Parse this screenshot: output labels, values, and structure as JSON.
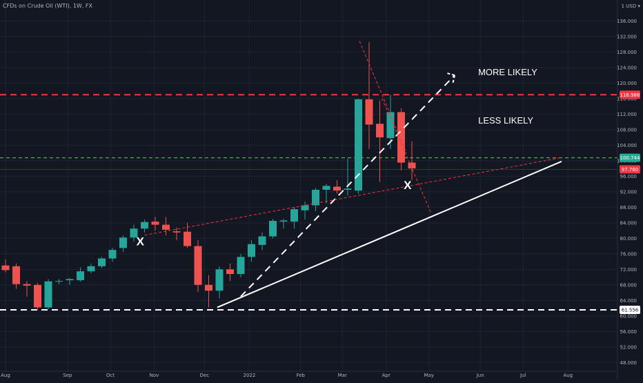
{
  "header": {
    "symbol": "CFDs on Crude Oil (WTI), 1W, FX"
  },
  "chart_data": {
    "type": "candlestick",
    "currency_label": "1 USD ▾",
    "y_ticks": [
      48,
      52,
      56,
      60,
      64,
      68,
      72,
      76,
      80,
      84,
      88,
      92,
      96,
      100,
      104,
      108,
      112,
      116,
      120,
      124,
      128,
      132,
      136
    ],
    "y_tick_labels": [
      "48.000",
      "52.000",
      "56.000",
      "60.000",
      "64.000",
      "68.000",
      "72.000",
      "76.000",
      "80.000",
      "84.000",
      "88.000",
      "92.000",
      "96.000",
      "100.000",
      "104.000",
      "108.000",
      "112.000",
      "116.000",
      "120.000",
      "124.000",
      "128.000",
      "132.000",
      "136.000"
    ],
    "ylim": [
      44.5,
      140.5
    ],
    "x_labels": [
      {
        "text": "Aug",
        "week": 0
      },
      {
        "text": "Sep",
        "week": 5.8
      },
      {
        "text": "Oct",
        "week": 9.8
      },
      {
        "text": "Nov",
        "week": 13.9
      },
      {
        "text": "Dec",
        "week": 18.6
      },
      {
        "text": "2022",
        "week": 22.8
      },
      {
        "text": "Feb",
        "week": 27.6
      },
      {
        "text": "Mar",
        "week": 31.5
      },
      {
        "text": "Apr",
        "week": 35.6
      },
      {
        "text": "May",
        "week": 39.6
      },
      {
        "text": "Jun",
        "week": 44.4
      },
      {
        "text": "Jul",
        "week": 48.4
      },
      {
        "text": "Aug",
        "week": 52.6
      }
    ],
    "candles": [
      {
        "o": 73.0,
        "h": 74.5,
        "l": 71.2,
        "c": 71.8
      },
      {
        "o": 72.8,
        "h": 73.5,
        "l": 67.0,
        "c": 68.2
      },
      {
        "o": 68.2,
        "h": 69.0,
        "l": 65.0,
        "c": 67.8
      },
      {
        "o": 68.0,
        "h": 68.5,
        "l": 61.7,
        "c": 62.2
      },
      {
        "o": 62.2,
        "h": 69.5,
        "l": 61.7,
        "c": 68.9
      },
      {
        "o": 68.9,
        "h": 69.5,
        "l": 68.2,
        "c": 69.0
      },
      {
        "o": 69.2,
        "h": 69.8,
        "l": 68.0,
        "c": 69.5
      },
      {
        "o": 69.2,
        "h": 72.5,
        "l": 68.8,
        "c": 71.5
      },
      {
        "o": 71.5,
        "h": 73.5,
        "l": 71.0,
        "c": 72.8
      },
      {
        "o": 72.8,
        "h": 75.2,
        "l": 72.3,
        "c": 74.8
      },
      {
        "o": 74.8,
        "h": 77.5,
        "l": 74.0,
        "c": 77.0
      },
      {
        "o": 77.5,
        "h": 80.8,
        "l": 76.5,
        "c": 80.2
      },
      {
        "o": 80.2,
        "h": 83.5,
        "l": 79.2,
        "c": 82.5
      },
      {
        "o": 82.5,
        "h": 84.8,
        "l": 81.5,
        "c": 84.2
      },
      {
        "o": 84.3,
        "h": 85.5,
        "l": 82.0,
        "c": 83.5
      },
      {
        "o": 83.5,
        "h": 85.5,
        "l": 80.8,
        "c": 82.2
      },
      {
        "o": 81.8,
        "h": 82.8,
        "l": 79.5,
        "c": 81.5
      },
      {
        "o": 81.7,
        "h": 84.0,
        "l": 77.5,
        "c": 78.0
      },
      {
        "o": 78.0,
        "h": 79.5,
        "l": 66.2,
        "c": 68.0
      },
      {
        "o": 68.0,
        "h": 70.5,
        "l": 62.2,
        "c": 66.5
      },
      {
        "o": 66.5,
        "h": 72.8,
        "l": 64.5,
        "c": 72.0
      },
      {
        "o": 72.0,
        "h": 73.5,
        "l": 69.0,
        "c": 70.8
      },
      {
        "o": 70.8,
        "h": 76.0,
        "l": 70.0,
        "c": 75.2
      },
      {
        "o": 75.2,
        "h": 79.5,
        "l": 74.0,
        "c": 78.5
      },
      {
        "o": 78.3,
        "h": 81.5,
        "l": 77.0,
        "c": 80.5
      },
      {
        "o": 80.5,
        "h": 85.0,
        "l": 80.0,
        "c": 84.5
      },
      {
        "o": 84.3,
        "h": 85.0,
        "l": 82.5,
        "c": 84.6
      },
      {
        "o": 84.3,
        "h": 88.0,
        "l": 82.5,
        "c": 87.5
      },
      {
        "o": 87.2,
        "h": 89.5,
        "l": 84.8,
        "c": 88.5
      },
      {
        "o": 88.5,
        "h": 93.0,
        "l": 87.0,
        "c": 92.5
      },
      {
        "o": 92.5,
        "h": 94.0,
        "l": 89.0,
        "c": 93.5
      },
      {
        "o": 93.3,
        "h": 95.0,
        "l": 91.5,
        "c": 92.3
      },
      {
        "o": 92.5,
        "h": 100.5,
        "l": 91.0,
        "c": 92.8
      },
      {
        "o": 92.3,
        "h": 116.0,
        "l": 91.5,
        "c": 115.8
      },
      {
        "o": 115.8,
        "h": 130.5,
        "l": 103.0,
        "c": 109.3
      },
      {
        "o": 109.5,
        "h": 115.5,
        "l": 94.5,
        "c": 106.0
      },
      {
        "o": 105.8,
        "h": 117.0,
        "l": 103.0,
        "c": 112.5
      },
      {
        "o": 112.5,
        "h": 113.5,
        "l": 97.5,
        "c": 99.5
      },
      {
        "o": 99.5,
        "h": 105.0,
        "l": 95.0,
        "c": 98.0
      }
    ],
    "price_tags": [
      {
        "label": "116.986",
        "value": 116.986,
        "color": "#f23645"
      },
      {
        "label": "100.744",
        "value": 100.744,
        "color": "#22ab94"
      },
      {
        "label": "97.760",
        "value": 97.76,
        "color": "#f23645"
      },
      {
        "label": "61.556",
        "value": 61.556,
        "color": "#ffffff"
      }
    ],
    "horizontal_lines": [
      {
        "value": 116.986,
        "color": "#f23645",
        "style": "dashed"
      },
      {
        "value": 100.744,
        "color": "#4caf50",
        "style": "dashed"
      },
      {
        "value": 61.556,
        "color": "#ffffff",
        "style": "dashed"
      }
    ],
    "trend_lines": [
      {
        "from": {
          "week": 19.8,
          "price": 62.2
        },
        "to": {
          "week": 52.0,
          "price": 99.8
        },
        "color": "#ffffff",
        "style": "solid"
      },
      {
        "from": {
          "week": 22.0,
          "price": 65.0
        },
        "to": {
          "week": 42.0,
          "price": 122.0
        },
        "color": "#ffffff",
        "style": "dashed",
        "arrow": true
      },
      {
        "from": {
          "week": 13.0,
          "price": 80.8
        },
        "to": {
          "week": 52.0,
          "price": 100.8
        },
        "color": "#f23645",
        "style": "dotted"
      },
      {
        "from": {
          "week": 33.1,
          "price": 130.8
        },
        "to": {
          "week": 37.5,
          "price": 102.0
        },
        "color": "#f23645",
        "style": "dotted"
      },
      {
        "from": {
          "week": 35.2,
          "price": 116.0
        },
        "to": {
          "week": 39.8,
          "price": 86.5
        },
        "color": "#f23645",
        "style": "dotted"
      }
    ],
    "annotations": [
      {
        "text": "MORE LIKELY",
        "week": 44.2,
        "price": 122.0
      },
      {
        "text": "LESS LIKELY",
        "week": 44.2,
        "price": 109.6
      }
    ],
    "x_markers": [
      {
        "text": "X",
        "week": 12.6,
        "price": 79.0
      },
      {
        "text": "X",
        "week": 37.6,
        "price": 93.5
      }
    ],
    "grid": true
  },
  "colors": {
    "background": "#131722",
    "grid": "#1f2431",
    "bull": "#26a69a",
    "bear": "#ef5350",
    "text": "#b2b5be"
  }
}
